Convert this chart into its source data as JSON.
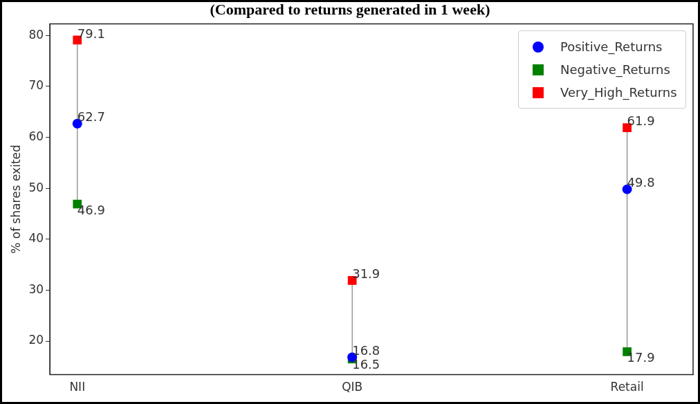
{
  "chart_data": {
    "type": "scatter",
    "title": "(Compared to returns generated in 1 week)",
    "ylabel": "% of shares exited",
    "categories": [
      "NII",
      "QIB",
      "Retail"
    ],
    "series": [
      {
        "name": "Positive_Returns",
        "color": "#0000ff",
        "marker": "circle",
        "values": [
          62.7,
          16.8,
          49.8
        ]
      },
      {
        "name": "Negative_Returns",
        "color": "#008000",
        "marker": "square",
        "values": [
          46.9,
          16.5,
          17.9
        ]
      },
      {
        "name": "Very_High_Returns",
        "color": "#ff0000",
        "marker": "square",
        "values": [
          79.1,
          31.9,
          61.9
        ]
      }
    ],
    "ylim": [
      13.4,
      82.3
    ],
    "yticks": [
      20,
      30,
      40,
      50,
      60,
      70,
      80
    ],
    "data_labels": true,
    "legend": "top right",
    "grid": false
  }
}
